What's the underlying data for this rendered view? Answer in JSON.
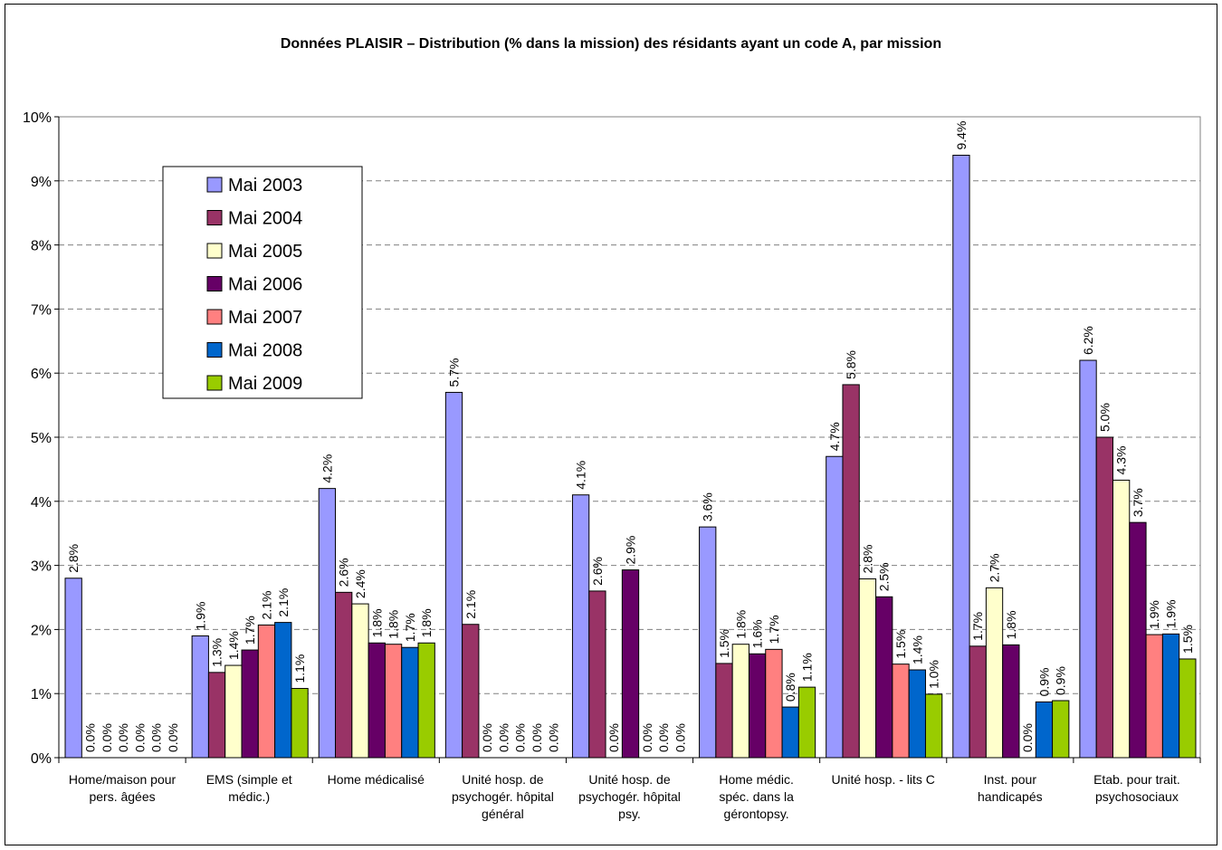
{
  "chart_data": {
    "type": "bar",
    "title": "Données PLAISIR – Distribution (% dans la mission) des résidants ayant un code A, par mission",
    "xlabel": "",
    "ylabel": "",
    "ylim": [
      0,
      10
    ],
    "yticks": [
      "0%",
      "1%",
      "2%",
      "3%",
      "4%",
      "5%",
      "6%",
      "7%",
      "8%",
      "9%",
      "10%"
    ],
    "grid": true,
    "legend_position": "top-left",
    "categories": [
      [
        "Home/maison pour",
        "pers. âgées"
      ],
      [
        "EMS (simple et",
        "médic.)"
      ],
      [
        "Home médicalisé"
      ],
      [
        "Unité hosp. de",
        "psychogér. hôpital",
        "général"
      ],
      [
        "Unité hosp. de",
        "psychogér. hôpital",
        "psy."
      ],
      [
        "Home médic.",
        "spéc. dans la",
        "gérontopsy."
      ],
      [
        "Unité hosp. - lits C"
      ],
      [
        "Inst. pour",
        "handicapés"
      ],
      [
        "Etab. pour trait.",
        "psychosociaux"
      ]
    ],
    "series": [
      {
        "name": "Mai 2003",
        "color": "#9999FF",
        "values": [
          2.8,
          1.9,
          4.2,
          5.7,
          4.1,
          3.6,
          4.7,
          9.4,
          6.2
        ],
        "labels": [
          "2.8%",
          "1.9%",
          "4.2%",
          "5.7%",
          "4.1%",
          "3.6%",
          "4.7%",
          "9.4%",
          "6.2%"
        ]
      },
      {
        "name": "Mai 2004",
        "color": "#993366",
        "values": [
          0.0,
          1.33,
          2.58,
          2.08,
          2.6,
          1.47,
          5.82,
          1.74,
          5.0
        ],
        "labels": [
          "0.0%",
          "1.3%",
          "2.6%",
          "2.1%",
          "2.6%",
          "1.5%",
          "5.8%",
          "1.7%",
          "5.0%"
        ]
      },
      {
        "name": "Mai 2005",
        "color": "#FFFFCC",
        "values": [
          0.0,
          1.44,
          2.4,
          0.0,
          0.0,
          1.77,
          2.79,
          2.65,
          4.33
        ],
        "labels": [
          "0.0%",
          "1.4%",
          "2.4%",
          "0.0%",
          "0.0%",
          "1.8%",
          "2.8%",
          "2.7%",
          "4.3%"
        ]
      },
      {
        "name": "Mai 2006",
        "color": "#660066",
        "values": [
          0.0,
          1.68,
          1.79,
          0.0,
          2.93,
          1.62,
          2.51,
          1.76,
          3.67
        ],
        "labels": [
          "0.0%",
          "1.7%",
          "1.8%",
          "0.0%",
          "2.9%",
          "1.6%",
          "2.5%",
          "1.8%",
          "3.7%"
        ]
      },
      {
        "name": "Mai 2007",
        "color": "#FF8080",
        "values": [
          0.0,
          2.07,
          1.77,
          0.0,
          0.0,
          1.69,
          1.46,
          0.0,
          1.92
        ],
        "labels": [
          "0.0%",
          "2.1%",
          "1.8%",
          "0.0%",
          "0.0%",
          "1.7%",
          "1.5%",
          "0.0%",
          "1.9%"
        ]
      },
      {
        "name": "Mai 2008",
        "color": "#0066CC",
        "values": [
          0.0,
          2.11,
          1.72,
          0.0,
          0.0,
          0.79,
          1.37,
          0.87,
          1.93
        ],
        "labels": [
          "0.0%",
          "2.1%",
          "1.7%",
          "0.0%",
          "0.0%",
          "0.8%",
          "1.4%",
          "0.9%",
          "1.9%"
        ]
      },
      {
        "name": "Mai 2009",
        "color": "#99CC00",
        "values": [
          0.0,
          1.08,
          1.79,
          0.0,
          0.0,
          1.1,
          0.99,
          0.89,
          1.54
        ],
        "labels": [
          "0.0%",
          "1.1%",
          "1.8%",
          "0.0%",
          "0.0%",
          "1.1%",
          "1.0%",
          "0.9%",
          "1.5%"
        ]
      }
    ]
  }
}
